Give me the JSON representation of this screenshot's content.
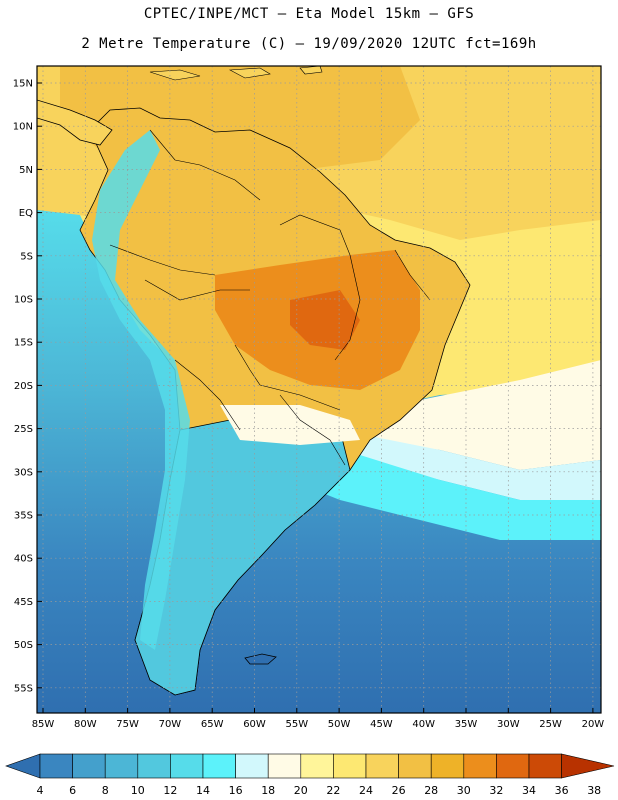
{
  "header": {
    "line1": "CPTEC/INPE/MCT –  Eta Model 15km – GFS",
    "line2": "2 Metre Temperature (C) – 19/09/2020 12UTC fct=169h"
  },
  "map": {
    "lat_labels": [
      "15N",
      "10N",
      "5N",
      "EQ",
      "5S",
      "10S",
      "15S",
      "20S",
      "25S",
      "30S",
      "35S",
      "40S",
      "45S",
      "50S",
      "55S"
    ],
    "lon_labels": [
      "85W",
      "80W",
      "75W",
      "70W",
      "65W",
      "60W",
      "55W",
      "50W",
      "45W",
      "40W",
      "35W",
      "30W",
      "25W",
      "20W"
    ]
  },
  "colorbar": {
    "labels": [
      "4",
      "6",
      "8",
      "10",
      "12",
      "14",
      "16",
      "18",
      "20",
      "22",
      "24",
      "26",
      "28",
      "30",
      "32",
      "34",
      "36",
      "38"
    ],
    "colors": [
      "#2f6fb0",
      "#3a86c0",
      "#44a0cc",
      "#4cb6d6",
      "#52c8de",
      "#56dcea",
      "#5cf2fa",
      "#d2f8fc",
      "#fffbe6",
      "#fff59a",
      "#fde872",
      "#f8d35c",
      "#f2c044",
      "#eeb228",
      "#ec8e1c",
      "#e06810",
      "#cc4a06",
      "#b83200"
    ]
  }
}
